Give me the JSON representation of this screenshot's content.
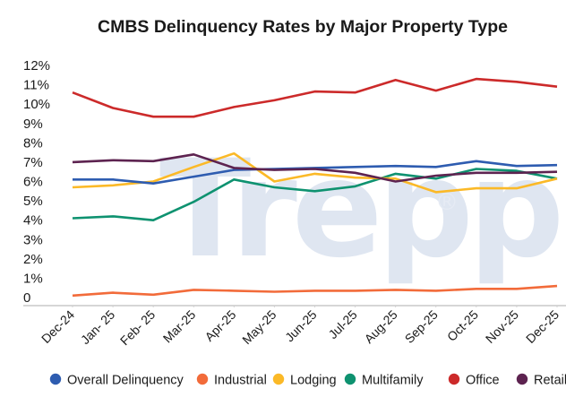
{
  "chart_data": {
    "type": "line",
    "title": "CMBS Delinquency Rates by Major Property Type",
    "xlabel": "",
    "ylabel": "",
    "watermark": "Trepp",
    "watermark_mark": "®",
    "x": [
      "Dec-24",
      "Jan- 25",
      "Feb- 25",
      "Mar-25",
      "Apr-25",
      "May-25",
      "Jun-25",
      "Jul-25",
      "Aug-25",
      "Sep-25",
      "Oct-25",
      "Nov-25",
      "Dec-25"
    ],
    "yticks": [
      {
        "value": 0,
        "label": "0"
      },
      {
        "value": 1,
        "label": "1%"
      },
      {
        "value": 2,
        "label": "2%"
      },
      {
        "value": 3,
        "label": "3%"
      },
      {
        "value": 4,
        "label": "4%"
      },
      {
        "value": 5,
        "label": "5%"
      },
      {
        "value": 6,
        "label": "6%"
      },
      {
        "value": 7,
        "label": "7%"
      },
      {
        "value": 8,
        "label": "8%"
      },
      {
        "value": 9,
        "label": "9%"
      },
      {
        "value": 10,
        "label": "10%"
      },
      {
        "value": 11,
        "label": "11%"
      },
      {
        "value": 12,
        "label": "12%"
      }
    ],
    "ylim": [
      0,
      12
    ],
    "grid": false,
    "legend_position": "bottom",
    "series": [
      {
        "name": "Overall Delinquency",
        "color": "#2e5cb0",
        "values": [
          6.1,
          6.1,
          5.9,
          6.25,
          6.6,
          6.65,
          6.7,
          6.75,
          6.8,
          6.75,
          7.05,
          6.8,
          6.85
        ]
      },
      {
        "name": "Industrial",
        "color": "#f26b3a",
        "values": [
          0.1,
          0.25,
          0.15,
          0.4,
          0.35,
          0.3,
          0.35,
          0.35,
          0.4,
          0.35,
          0.45,
          0.45,
          0.6
        ]
      },
      {
        "name": "Lodging",
        "color": "#fbb927",
        "values": [
          5.7,
          5.8,
          6.0,
          6.75,
          7.45,
          6.0,
          6.4,
          6.2,
          6.15,
          5.45,
          5.65,
          5.65,
          6.15
        ]
      },
      {
        "name": "Multifamily",
        "color": "#0e9270",
        "values": [
          4.1,
          4.2,
          4.0,
          4.95,
          6.1,
          5.7,
          5.5,
          5.75,
          6.4,
          6.15,
          6.65,
          6.55,
          6.15
        ]
      },
      {
        "name": "Office",
        "color": "#cc2a2a",
        "values": [
          10.6,
          9.8,
          9.35,
          9.35,
          9.85,
          10.2,
          10.65,
          10.6,
          11.25,
          10.7,
          11.3,
          11.15,
          10.9
        ]
      },
      {
        "name": "Retail",
        "color": "#5d2350",
        "values": [
          7.0,
          7.1,
          7.05,
          7.4,
          6.7,
          6.6,
          6.65,
          6.45,
          6.0,
          6.3,
          6.45,
          6.45,
          6.5
        ]
      }
    ]
  }
}
